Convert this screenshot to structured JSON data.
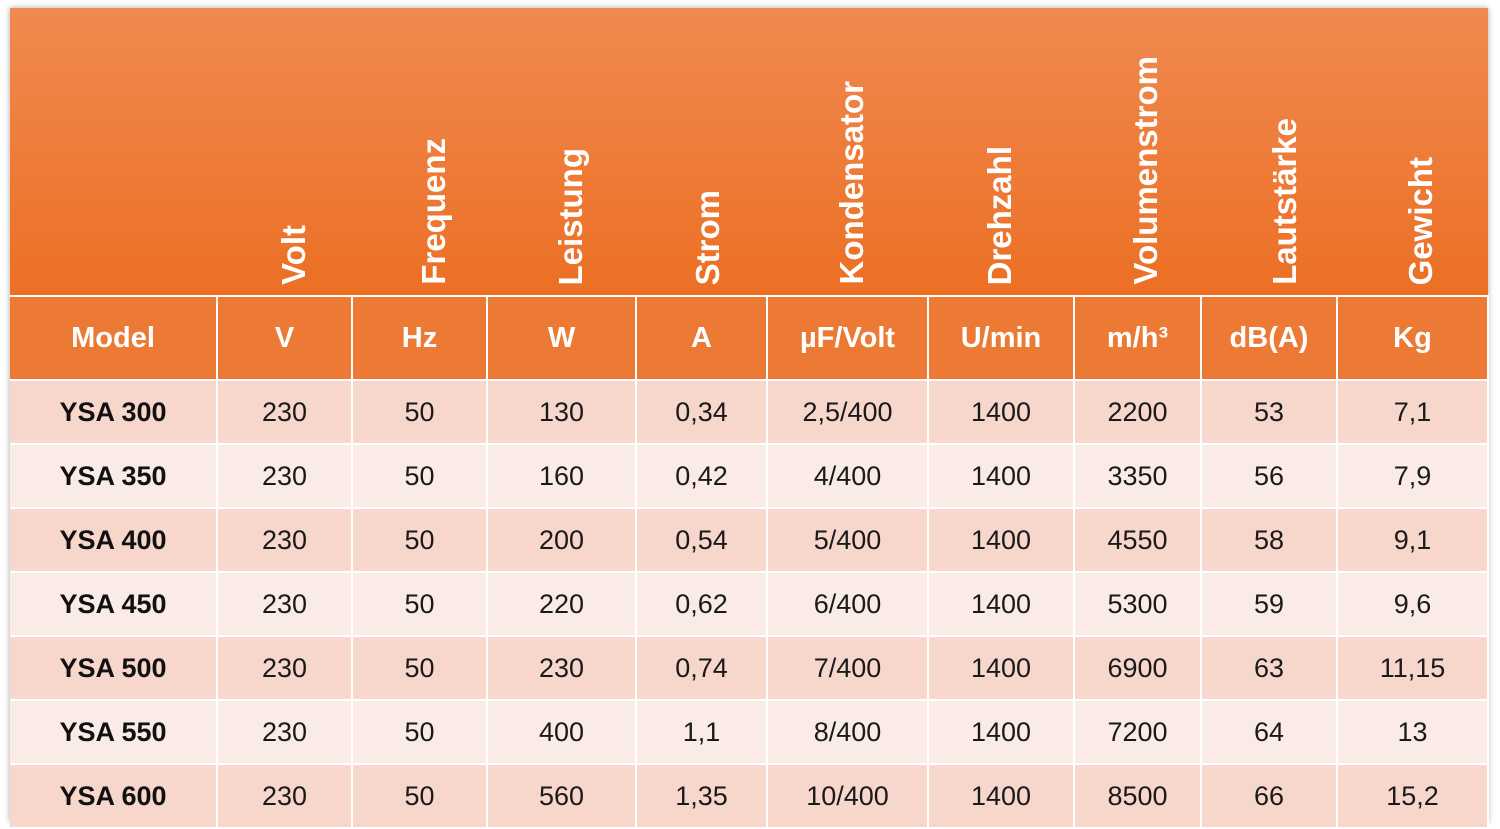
{
  "header_labels": [
    "Volt",
    "Frequenz",
    "Leistung",
    "Strom",
    "Kondensator",
    "Drehzahl",
    "Volumenstrom",
    "Lautstärke",
    "Gewicht"
  ],
  "units_row": [
    "Model",
    "V",
    "Hz",
    "W",
    "A",
    "µF/Volt",
    "U/min",
    "m/h³",
    "dB(A)",
    "Kg"
  ],
  "rows": [
    [
      "YSA 300",
      "230",
      "50",
      "130",
      "0,34",
      "2,5/400",
      "1400",
      "2200",
      "53",
      "7,1"
    ],
    [
      "YSA 350",
      "230",
      "50",
      "160",
      "0,42",
      "4/400",
      "1400",
      "3350",
      "56",
      "7,9"
    ],
    [
      "YSA 400",
      "230",
      "50",
      "200",
      "0,54",
      "5/400",
      "1400",
      "4550",
      "58",
      "9,1"
    ],
    [
      "YSA 450",
      "230",
      "50",
      "220",
      "0,62",
      "6/400",
      "1400",
      "5300",
      "59",
      "9,6"
    ],
    [
      "YSA 500",
      "230",
      "50",
      "230",
      "0,74",
      "7/400",
      "1400",
      "6900",
      "63",
      "11,15"
    ],
    [
      "YSA 550",
      "230",
      "50",
      "400",
      "1,1",
      "8/400",
      "1400",
      "7200",
      "64",
      "13"
    ],
    [
      "YSA 600",
      "230",
      "50",
      "560",
      "1,35",
      "10/400",
      "1400",
      "8500",
      "66",
      "15,2"
    ]
  ],
  "colors": {
    "header_orange": "#ec6f24",
    "unit_row_orange": "#ec7a34",
    "row_odd": "#f7d6cc",
    "row_even": "#fbebe6"
  }
}
